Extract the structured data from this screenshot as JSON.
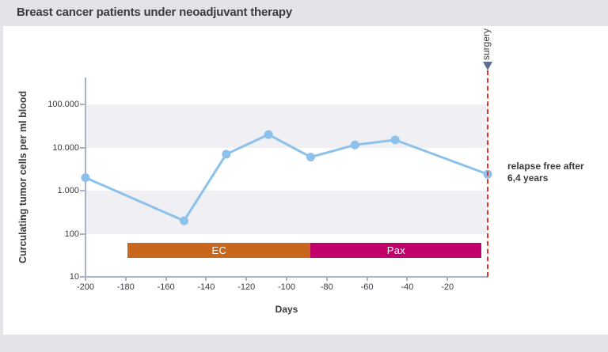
{
  "header": {
    "title": "Breast cancer patients under neoadjuvant therapy"
  },
  "chart_data": {
    "type": "line",
    "title": "Breast cancer patients under neoadjuvant therapy",
    "series_name": "circulating tumor cells per ml blood",
    "xlabel": "Days",
    "ylabel": "Curculating tumor cells per ml blood",
    "y_scale": "log",
    "ylim": [
      10,
      400000
    ],
    "xlim": [
      -200,
      8
    ],
    "x_days": [
      -200,
      -151,
      -130,
      -109,
      -88,
      -66,
      -46,
      0
    ],
    "values": [
      2000,
      200,
      7000,
      20000,
      6000,
      11500,
      15000,
      2400
    ],
    "xticks": {
      "values": [
        -200,
        -180,
        -160,
        -140,
        -120,
        -100,
        -80,
        -60,
        -40,
        -20
      ],
      "labels": [
        "-200",
        "-180",
        "-160",
        "-140",
        "-120",
        "-100",
        "-80",
        "-60",
        "-40",
        "-20"
      ]
    },
    "yticks": {
      "values": [
        100000,
        10000,
        1000,
        100,
        10
      ],
      "labels": [
        "100.000",
        "10.000",
        "1.000",
        "100",
        "10"
      ]
    },
    "bands": [
      {
        "from": 10000,
        "to": 100000
      },
      {
        "from": 100,
        "to": 1000
      }
    ],
    "treatment_bars": [
      {
        "label": "EC",
        "from_day": -179,
        "to_day": -88,
        "color": "#c8671c"
      },
      {
        "label": "Pax",
        "from_day": -88,
        "to_day": -3,
        "color": "#c2006b"
      }
    ],
    "annotations": {
      "surgery": {
        "label": "surgery",
        "day": 0,
        "line_color": "#e6332a",
        "arrow_color": "#5d6d94"
      },
      "relapse": {
        "line1": "relapse free after",
        "line2": "6,4 years"
      }
    },
    "colors": {
      "line": "#8cc1ec",
      "marker": "#8cc1ec",
      "band": "#f0eff3",
      "axis": "#a9b3c7",
      "text": "#3b3a3e",
      "page_bg": "#e5e3e8",
      "card_bg": "#ffffff"
    },
    "legend": "none"
  }
}
